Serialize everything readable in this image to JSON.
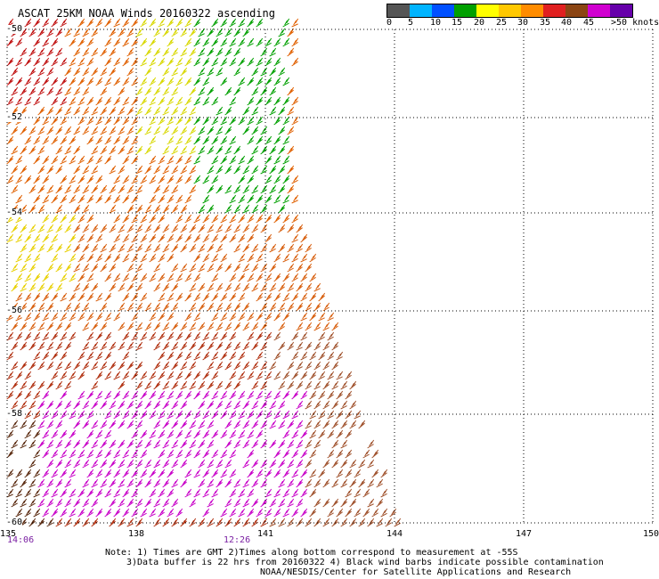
{
  "title": "ASCAT 25KM NOAA Winds 20160322 ascending",
  "legend": {
    "labels": [
      "0",
      "5",
      "10",
      "15",
      "20",
      "25",
      "30",
      "35",
      "40",
      "45",
      ">50 knots"
    ],
    "colors": [
      "#555555",
      "#00b4ff",
      "#0050ff",
      "#00a000",
      "#ffff00",
      "#ffc800",
      "#ff8c00",
      "#e02020",
      "#8b4513",
      "#d000d0",
      "#6600aa"
    ]
  },
  "map": {
    "lat_labels": [
      "-50",
      "-52",
      "-54",
      "-56",
      "-58",
      "-60"
    ],
    "lon_labels": [
      "135",
      "138",
      "141",
      "144",
      "147",
      "150"
    ],
    "time_labels": [
      "14:06",
      "12:26"
    ],
    "grid": "dotted"
  },
  "notes": [
    "Note: 1) Times are GMT 2)Times along bottom correspond to measurement at -55S",
    "3)Data buffer is 22 hrs from 20160322 4) Black wind barbs indicate possible contamination",
    "NOAA/NESDIS/Center for Satellite Applications and Research"
  ]
}
